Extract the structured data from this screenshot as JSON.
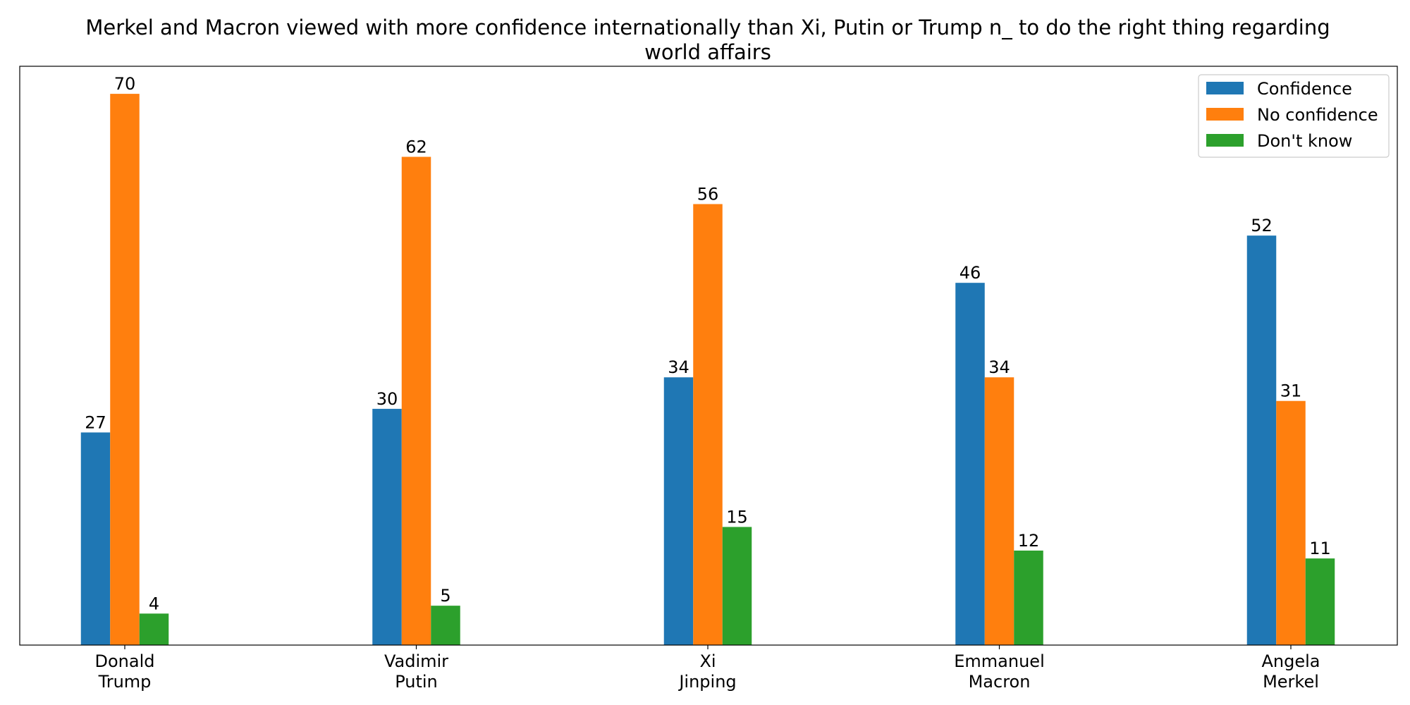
{
  "chart_data": {
    "type": "bar",
    "title_lines": [
      "Merkel and Macron viewed with more confidence internationally than Xi, Putin or Trump n_ to do the right thing regarding",
      "world affairs"
    ],
    "categories": [
      [
        "Donald",
        "Trump"
      ],
      [
        "Vadimir",
        "Putin"
      ],
      [
        "Xi",
        "Jinping"
      ],
      [
        "Emmanuel",
        "Macron"
      ],
      [
        "Angela",
        "Merkel"
      ]
    ],
    "series": [
      {
        "name": "Confidence",
        "color": "#1f77b4",
        "values": [
          27,
          30,
          34,
          46,
          52
        ]
      },
      {
        "name": "No confidence",
        "color": "#ff7f0e",
        "values": [
          70,
          62,
          56,
          34,
          31
        ]
      },
      {
        "name": "Don't know",
        "color": "#2ca02c",
        "values": [
          4,
          5,
          15,
          12,
          11
        ]
      }
    ],
    "ylim": [
      0,
      73.5
    ],
    "y_axis_visible": false,
    "grid": false,
    "legend_position": "top-right",
    "xlabel": "",
    "ylabel": ""
  }
}
